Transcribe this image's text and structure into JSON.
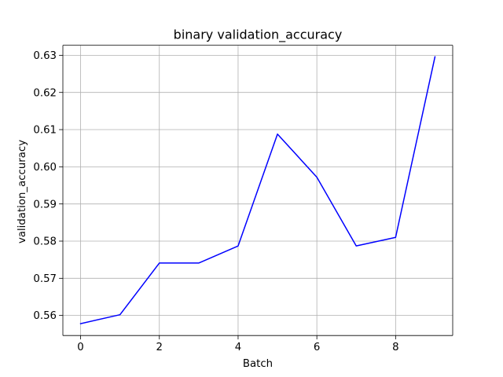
{
  "chart_data": {
    "type": "line",
    "title": "binary validation_accuracy",
    "xlabel": "Batch",
    "ylabel": "validation_accuracy",
    "xlim": [
      -0.45,
      9.45
    ],
    "ylim": [
      0.5546,
      0.6327
    ],
    "x_ticks": [
      0,
      2,
      4,
      6,
      8
    ],
    "y_ticks": [
      0.56,
      0.57,
      0.58,
      0.59,
      0.6,
      0.61,
      0.62,
      0.63
    ],
    "x_tick_labels": [
      "0",
      "2",
      "4",
      "6",
      "8"
    ],
    "y_tick_labels": [
      "0.56",
      "0.57",
      "0.58",
      "0.59",
      "0.60",
      "0.61",
      "0.62",
      "0.63"
    ],
    "grid": true,
    "series": [
      {
        "name": "validation_accuracy",
        "color": "#0000ff",
        "x": [
          0,
          1,
          2,
          3,
          4,
          5,
          6,
          7,
          8,
          9
        ],
        "y": [
          0.5578,
          0.5602,
          0.5741,
          0.5741,
          0.5787,
          0.6088,
          0.5972,
          0.5787,
          0.581,
          0.6296
        ]
      }
    ]
  }
}
